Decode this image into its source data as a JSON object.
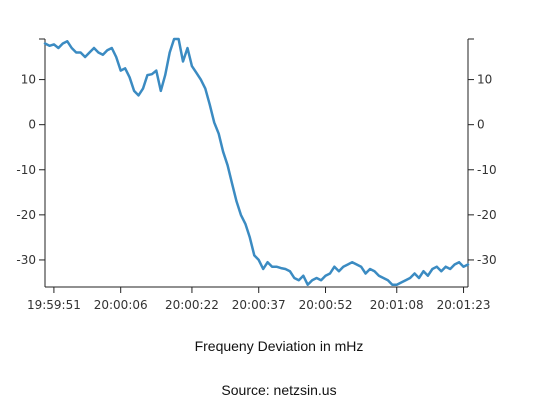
{
  "chart_data": {
    "type": "line",
    "title": "",
    "xlabel": "Frequeny Deviation in mHz",
    "ylabel": "",
    "source": "Source:  netzsin.us",
    "x_ticks": [
      "19:59:51",
      "20:00:06",
      "20:00:22",
      "20:00:37",
      "20:00:52",
      "20:01:08",
      "20:01:23"
    ],
    "x_tick_seconds": [
      51,
      66,
      82,
      97,
      112,
      128,
      143
    ],
    "y_ticks": [
      -30,
      -20,
      -10,
      0,
      10
    ],
    "ylim": [
      -36,
      19
    ],
    "xlim_seconds": [
      49,
      144
    ],
    "grid": false,
    "colors": {
      "series": "#3b8bc2",
      "axis": "#222222"
    },
    "series": [
      {
        "name": "",
        "x_seconds": [
          49,
          50,
          51,
          52,
          53,
          54,
          55,
          56,
          57,
          58,
          59,
          60,
          61,
          62,
          63,
          64,
          65,
          66,
          67,
          68,
          69,
          70,
          71,
          72,
          73,
          74,
          75,
          76,
          77,
          78,
          79,
          80,
          81,
          82,
          83,
          84,
          85,
          86,
          87,
          88,
          89,
          90,
          91,
          92,
          93,
          94,
          95,
          96,
          97,
          98,
          99,
          100,
          101,
          102,
          103,
          104,
          105,
          106,
          107,
          108,
          109,
          110,
          111,
          112,
          113,
          114,
          115,
          116,
          117,
          118,
          119,
          120,
          121,
          122,
          123,
          124,
          125,
          126,
          127,
          128,
          129,
          130,
          131,
          132,
          133,
          134,
          135,
          136,
          137,
          138,
          139,
          140,
          141,
          142,
          143,
          144
        ],
        "values": [
          18,
          17.5,
          17.8,
          17,
          18,
          18.5,
          17,
          16,
          16,
          15,
          16,
          17,
          16,
          15.5,
          16.5,
          17,
          15,
          12,
          12.5,
          10.5,
          7.5,
          6.5,
          8,
          11,
          11.2,
          12,
          7.5,
          11,
          16,
          19,
          19,
          14,
          17,
          13,
          11.5,
          10,
          8,
          4.5,
          0.5,
          -2,
          -6,
          -9,
          -13,
          -17,
          -20,
          -22,
          -25,
          -29,
          -30,
          -32,
          -30.5,
          -31.5,
          -31.5,
          -31.8,
          -32,
          -32.5,
          -34,
          -34.5,
          -33.5,
          -35.5,
          -34.5,
          -34,
          -34.5,
          -33.5,
          -33,
          -31.5,
          -32.5,
          -31.5,
          -31,
          -30.5,
          -31,
          -31.5,
          -33,
          -32,
          -32.5,
          -33.5,
          -34,
          -34.5,
          -35.5,
          -35.5,
          -35,
          -34.5,
          -34,
          -33,
          -34,
          -32.5,
          -33.5,
          -32,
          -31.5,
          -32.5,
          -31.5,
          -32,
          -31,
          -30.5,
          -31.5,
          -31
        ]
      }
    ]
  }
}
